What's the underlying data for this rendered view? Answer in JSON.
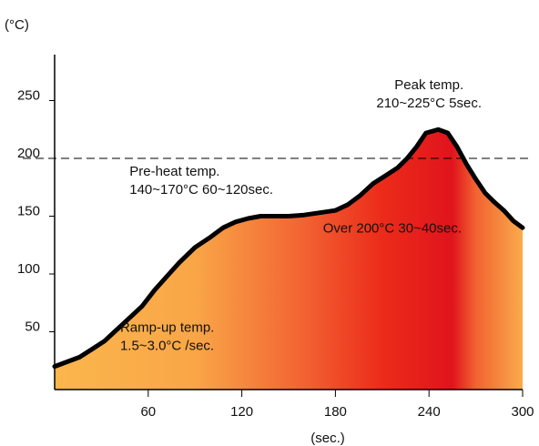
{
  "chart_data": {
    "type": "area",
    "title": "",
    "xlabel": "(sec.)",
    "ylabel": "(°C)",
    "xlim": [
      0,
      300
    ],
    "ylim": [
      0,
      270
    ],
    "x_ticks": [
      60,
      120,
      180,
      240,
      300
    ],
    "y_ticks": [
      50,
      100,
      150,
      200,
      250
    ],
    "reference_line": {
      "y": 200
    },
    "series": [
      {
        "x": [
          0,
          8,
          16,
          24,
          32,
          40,
          48,
          56,
          64,
          72,
          80,
          90,
          100,
          108,
          116,
          124,
          132,
          140,
          150,
          160,
          170,
          180,
          188,
          196,
          204,
          212,
          220,
          226,
          232,
          238,
          246,
          252,
          258,
          264,
          270,
          276,
          282,
          288,
          294,
          300
        ],
        "y": [
          20,
          24,
          28,
          35,
          42,
          52,
          62,
          72,
          86,
          98,
          110,
          123,
          132,
          140,
          145,
          148,
          150,
          150,
          150,
          151,
          153,
          155,
          160,
          168,
          178,
          185,
          192,
          200,
          210,
          222,
          225,
          222,
          210,
          195,
          182,
          170,
          162,
          155,
          146,
          140
        ]
      }
    ],
    "gradient_stops": [
      {
        "x": 0,
        "color": "#fbb64c"
      },
      {
        "x": 90,
        "color": "#f9a647"
      },
      {
        "x": 160,
        "color": "#f26232"
      },
      {
        "x": 210,
        "color": "#ec2b1a"
      },
      {
        "x": 255,
        "color": "#e0141c"
      },
      {
        "x": 270,
        "color": "#f26331"
      },
      {
        "x": 300,
        "color": "#f9ab4b"
      }
    ],
    "annotations": [
      {
        "lines": [
          "Peak temp.",
          "210~225°C 5sec."
        ],
        "x": 240,
        "y": 260
      },
      {
        "lines": [
          "Pre-heat temp.",
          "140~170°C 60~120sec."
        ],
        "x": 48,
        "y": 185
      },
      {
        "lines": [
          "Over 200°C 30~40sec."
        ],
        "x": 172,
        "y": 136
      },
      {
        "lines": [
          "Ramp-up temp.",
          "1.5~3.0°C /sec."
        ],
        "x": 42,
        "y": 50
      }
    ]
  }
}
